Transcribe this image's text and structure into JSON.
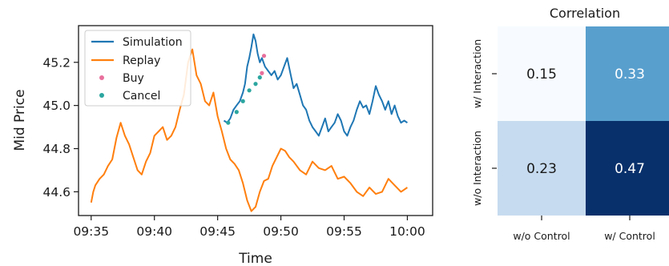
{
  "chart_data": [
    {
      "type": "line",
      "xlabel": "Time",
      "ylabel": "Mid Price",
      "x_ticks": [
        "09:35",
        "09:40",
        "09:45",
        "09:50",
        "09:55",
        "10:00"
      ],
      "y_ticks": [
        "44.6",
        "44.8",
        "45.0",
        "45.2"
      ],
      "xlim": [
        "09:34",
        "10:02"
      ],
      "ylim": [
        44.49,
        45.37
      ],
      "legend_position": "top-left",
      "series": [
        {
          "name": "Simulation",
          "kind": "line",
          "color": "#1f77b4",
          "x": [
            "09:45:30",
            "09:45:45",
            "09:46:00",
            "09:46:15",
            "09:46:30",
            "09:46:45",
            "09:47:00",
            "09:47:10",
            "09:47:20",
            "09:47:30",
            "09:47:40",
            "09:47:50",
            "09:48:00",
            "09:48:10",
            "09:48:20",
            "09:48:30",
            "09:48:45",
            "09:49:00",
            "09:49:15",
            "09:49:30",
            "09:49:45",
            "09:50:00",
            "09:50:15",
            "09:50:30",
            "09:50:45",
            "09:51:00",
            "09:51:15",
            "09:51:30",
            "09:51:45",
            "09:52:00",
            "09:52:15",
            "09:52:30",
            "09:52:45",
            "09:53:00",
            "09:53:15",
            "09:53:30",
            "09:53:45",
            "09:54:00",
            "09:54:15",
            "09:54:30",
            "09:54:45",
            "09:55:00",
            "09:55:15",
            "09:55:30",
            "09:55:45",
            "09:56:00",
            "09:56:15",
            "09:56:30",
            "09:56:45",
            "09:57:00",
            "09:57:15",
            "09:57:30",
            "09:57:45",
            "09:58:00",
            "09:58:15",
            "09:58:30",
            "09:58:45",
            "09:59:00",
            "09:59:15",
            "09:59:30",
            "09:59:45",
            "10:00:00"
          ],
          "values": [
            44.93,
            44.92,
            44.94,
            44.98,
            45.0,
            45.02,
            45.06,
            45.1,
            45.18,
            45.22,
            45.27,
            45.33,
            45.3,
            45.24,
            45.2,
            45.22,
            45.18,
            45.16,
            45.14,
            45.16,
            45.12,
            45.14,
            45.18,
            45.22,
            45.15,
            45.08,
            45.1,
            45.05,
            45.0,
            44.98,
            44.93,
            44.9,
            44.88,
            44.86,
            44.9,
            44.94,
            44.88,
            44.9,
            44.92,
            44.96,
            44.93,
            44.88,
            44.86,
            44.9,
            44.93,
            44.98,
            45.02,
            44.99,
            45.0,
            44.96,
            45.02,
            45.09,
            45.05,
            45.02,
            44.98,
            45.02,
            44.96,
            45.0,
            44.95,
            44.92,
            44.93,
            44.92
          ]
        },
        {
          "name": "Replay",
          "kind": "line",
          "color": "#ff7f0e",
          "x": [
            "09:35:00",
            "09:35:10",
            "09:35:20",
            "09:35:40",
            "09:36:00",
            "09:36:20",
            "09:36:40",
            "09:37:00",
            "09:37:20",
            "09:37:40",
            "09:38:00",
            "09:38:20",
            "09:38:40",
            "09:39:00",
            "09:39:20",
            "09:39:40",
            "09:40:00",
            "09:40:20",
            "09:40:40",
            "09:41:00",
            "09:41:20",
            "09:41:40",
            "09:42:00",
            "09:42:20",
            "09:42:40",
            "09:43:00",
            "09:43:20",
            "09:43:40",
            "09:44:00",
            "09:44:20",
            "09:44:40",
            "09:45:00",
            "09:45:20",
            "09:45:40",
            "09:46:00",
            "09:46:20",
            "09:46:40",
            "09:47:00",
            "09:47:20",
            "09:47:40",
            "09:48:00",
            "09:48:20",
            "09:48:40",
            "09:49:00",
            "09:49:20",
            "09:49:40",
            "09:50:00",
            "09:50:20",
            "09:50:40",
            "09:51:00",
            "09:51:30",
            "09:52:00",
            "09:52:30",
            "09:53:00",
            "09:53:30",
            "09:54:00",
            "09:54:30",
            "09:55:00",
            "09:55:30",
            "09:56:00",
            "09:56:30",
            "09:57:00",
            "09:57:30",
            "09:58:00",
            "09:58:30",
            "09:59:00",
            "09:59:30",
            "10:00:00"
          ],
          "values": [
            44.55,
            44.6,
            44.63,
            44.66,
            44.68,
            44.72,
            44.75,
            44.85,
            44.92,
            44.86,
            44.82,
            44.76,
            44.7,
            44.68,
            44.74,
            44.78,
            44.86,
            44.88,
            44.9,
            44.84,
            44.86,
            44.9,
            44.98,
            45.05,
            45.2,
            45.26,
            45.14,
            45.1,
            45.02,
            45.0,
            45.06,
            44.95,
            44.88,
            44.8,
            44.75,
            44.73,
            44.7,
            44.64,
            44.56,
            44.51,
            44.53,
            44.6,
            44.65,
            44.66,
            44.72,
            44.76,
            44.8,
            44.79,
            44.76,
            44.74,
            44.7,
            44.68,
            44.74,
            44.71,
            44.7,
            44.72,
            44.66,
            44.67,
            44.64,
            44.6,
            44.58,
            44.62,
            44.59,
            44.6,
            44.66,
            44.63,
            44.6,
            44.62
          ]
        },
        {
          "name": "Buy",
          "kind": "scatter",
          "color": "#e8709c",
          "x": [
            "09:48:30",
            "09:48:40"
          ],
          "values": [
            45.15,
            45.23
          ]
        },
        {
          "name": "Cancel",
          "kind": "scatter",
          "color": "#2ca6a0",
          "x": [
            "09:45:50",
            "09:46:30",
            "09:47:00",
            "09:47:30",
            "09:48:00",
            "09:48:20"
          ],
          "values": [
            44.92,
            44.97,
            45.02,
            45.07,
            45.1,
            45.13
          ]
        }
      ]
    },
    {
      "type": "heatmap",
      "title": "Correlation",
      "row_labels": [
        "w/ Interaction",
        "w/o Interaction"
      ],
      "col_labels": [
        "w/o Control",
        "w/ Control"
      ],
      "values": [
        [
          0.15,
          0.33
        ],
        [
          0.23,
          0.47
        ]
      ],
      "value_labels": [
        [
          "0.15",
          "0.33"
        ],
        [
          "0.23",
          "0.47"
        ]
      ],
      "colormap": "Blues",
      "colorbar": false
    }
  ]
}
